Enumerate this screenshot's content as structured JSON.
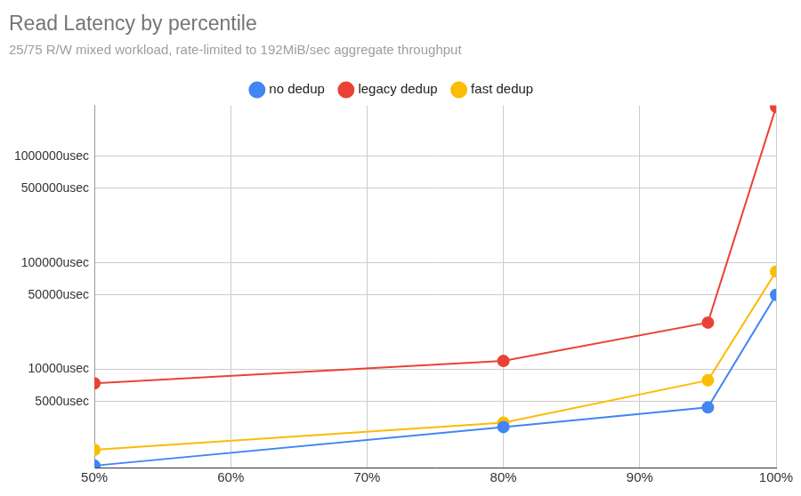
{
  "chart_data": {
    "type": "line",
    "title": "Read Latency by percentile",
    "subtitle": "25/75 R/W mixed workload, rate-limited to 192MiB/sec aggregate throughput",
    "x": [
      50,
      80,
      95,
      100
    ],
    "series": [
      {
        "name": "no dedup",
        "color": "#4285f4",
        "values": [
          1250,
          2880,
          4400,
          50000
        ]
      },
      {
        "name": "legacy dedup",
        "color": "#ea4335",
        "values": [
          7400,
          12000,
          27500,
          2900000
        ]
      },
      {
        "name": "fast dedup",
        "color": "#fbbc04",
        "values": [
          1760,
          3160,
          7900,
          82800
        ]
      }
    ],
    "xlim": [
      50,
      100
    ],
    "xticks": [
      {
        "value": 50,
        "label": "50%"
      },
      {
        "value": 60,
        "label": "60%"
      },
      {
        "value": 70,
        "label": "70%"
      },
      {
        "value": 80,
        "label": "80%"
      },
      {
        "value": 90,
        "label": "90%"
      },
      {
        "value": 100,
        "label": "100%"
      }
    ],
    "ylim": [
      1200,
      3000000
    ],
    "yticks": [
      {
        "value": 5000,
        "label": "5000usec"
      },
      {
        "value": 10000,
        "label": "10000usec"
      },
      {
        "value": 50000,
        "label": "50000usec"
      },
      {
        "value": 100000,
        "label": "100000usec"
      },
      {
        "value": 500000,
        "label": "500000usec"
      },
      {
        "value": 1000000,
        "label": "1000000usec"
      }
    ],
    "log": "y",
    "grid": true,
    "legend": "top",
    "marker": "circle"
  }
}
